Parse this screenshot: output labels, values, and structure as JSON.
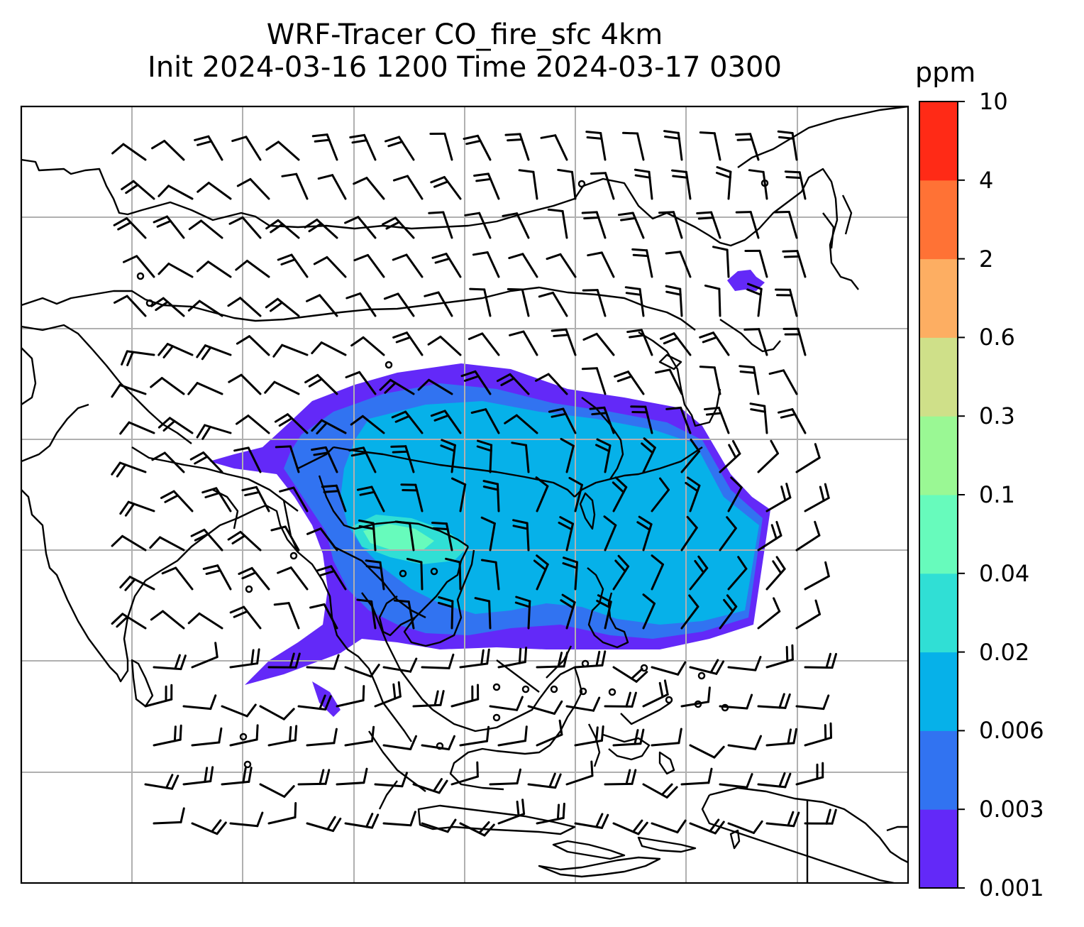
{
  "title": {
    "line1": "WRF-Tracer CO_fire_sfc 4km",
    "line2": "Init 2024-03-16 1200 Time 2024-03-17 0300"
  },
  "colorbar": {
    "unit": "ppm",
    "levels": [
      "0.001",
      "0.003",
      "0.006",
      "0.02",
      "0.04",
      "0.1",
      "0.3",
      "0.6",
      "2",
      "4",
      "10"
    ],
    "colors": [
      "#6329f8",
      "#3173f1",
      "#06b1e9",
      "#30dfd5",
      "#67fbbc",
      "#9af894",
      "#cfe089",
      "#fdae62",
      "#ff7235",
      "#ff2a16"
    ]
  },
  "map": {
    "gridlines": true,
    "coastline_color": "#000000",
    "grid_color": "#b0b0b0"
  }
}
